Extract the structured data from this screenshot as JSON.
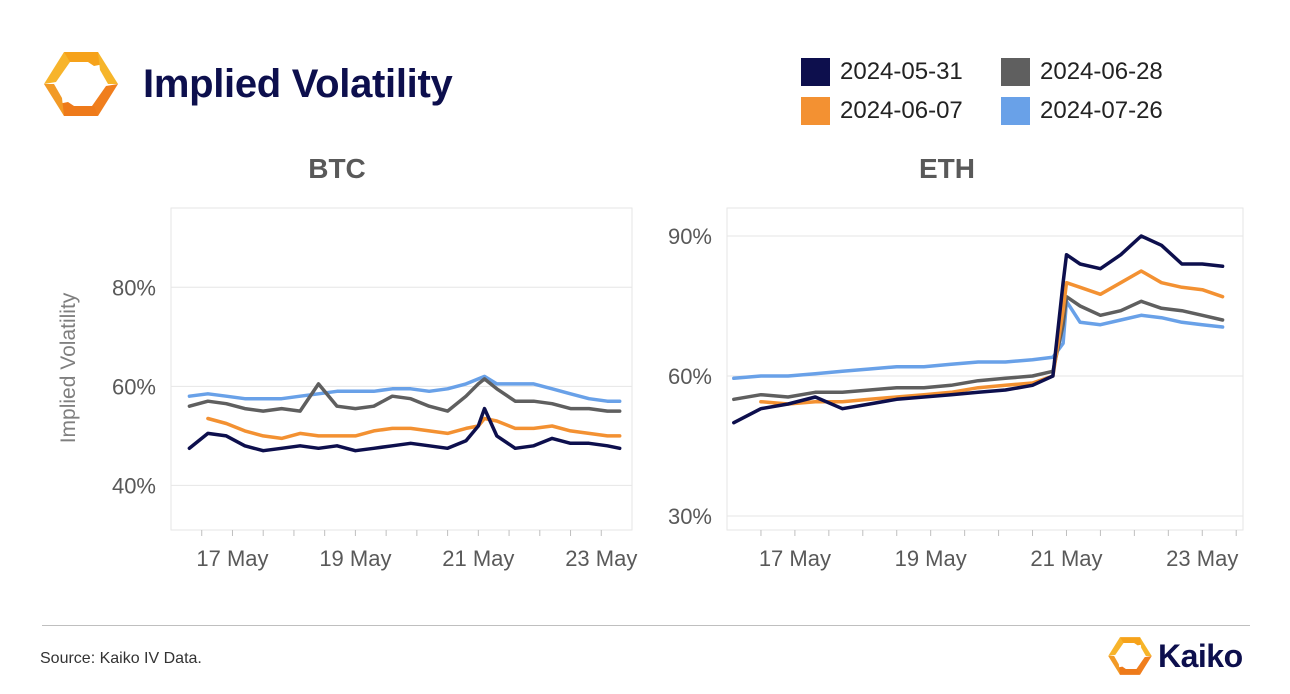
{
  "header": {
    "title": "Implied Volatility",
    "logo_icon": "kaiko-logo-icon"
  },
  "legend": [
    {
      "label": "2024-05-31",
      "color": "#0d0f4d"
    },
    {
      "label": "2024-06-28",
      "color": "#5f5f5f"
    },
    {
      "label": "2024-06-07",
      "color": "#f39132"
    },
    {
      "label": "2024-07-26",
      "color": "#69a1e8"
    }
  ],
  "footer": {
    "source": "Source: Kaiko IV Data.",
    "brand": "Kaiko",
    "brand_icon": "kaiko-logo-icon"
  },
  "chart_data": [
    {
      "type": "line",
      "title": "BTC",
      "ylabel": "Implied Volatility",
      "xlabel": "",
      "x_ticks": [
        "17 May",
        "19 May",
        "21 May",
        "23 May"
      ],
      "x_tick_values": [
        17,
        19,
        21,
        23
      ],
      "xlim": [
        16,
        23.5
      ],
      "y_ticks": [
        "40%",
        "60%",
        "80%"
      ],
      "y_tick_values": [
        40,
        60,
        80
      ],
      "ylim": [
        31,
        96
      ],
      "grid": true,
      "x": [
        16.3,
        16.6,
        16.9,
        17.2,
        17.5,
        17.8,
        18.1,
        18.4,
        18.7,
        19.0,
        19.3,
        19.6,
        19.9,
        20.2,
        20.5,
        20.8,
        21.0,
        21.1,
        21.3,
        21.6,
        21.9,
        22.2,
        22.5,
        22.8,
        23.1,
        23.3
      ],
      "series": [
        {
          "name": "2024-05-31",
          "color": "#0d0f4d",
          "values": [
            47.5,
            50.5,
            50,
            48,
            47,
            47.5,
            48,
            47.5,
            48,
            47,
            47.5,
            48,
            48.5,
            48,
            47.5,
            49,
            52,
            55.5,
            50,
            47.5,
            48,
            49.5,
            48.5,
            48.5,
            48,
            47.5
          ]
        },
        {
          "name": "2024-06-07",
          "color": "#f39132",
          "values": [
            null,
            53.5,
            52.5,
            51,
            50,
            49.5,
            50.5,
            50,
            50,
            50,
            51,
            51.5,
            51.5,
            51,
            50.5,
            51.5,
            52,
            53.5,
            53,
            51.5,
            51.5,
            52,
            51,
            50.5,
            50,
            50
          ]
        },
        {
          "name": "2024-06-28",
          "color": "#5f5f5f",
          "values": [
            56,
            57,
            56.5,
            55.5,
            55,
            55.5,
            55,
            60.5,
            56,
            55.5,
            56,
            58,
            57.5,
            56,
            55,
            58,
            60.5,
            61.5,
            59.5,
            57,
            57,
            56.5,
            55.5,
            55.5,
            55,
            55
          ]
        },
        {
          "name": "2024-07-26",
          "color": "#69a1e8",
          "values": [
            58,
            58.5,
            58,
            57.5,
            57.5,
            57.5,
            58,
            58.5,
            59,
            59,
            59,
            59.5,
            59.5,
            59,
            59.5,
            60.5,
            61.5,
            62,
            60.5,
            60.5,
            60.5,
            59.5,
            58.5,
            57.5,
            57,
            57
          ]
        }
      ]
    },
    {
      "type": "line",
      "title": "ETH",
      "ylabel": "",
      "xlabel": "",
      "x_ticks": [
        "17 May",
        "19 May",
        "21 May",
        "23 May"
      ],
      "x_tick_values": [
        17,
        19,
        21,
        23
      ],
      "xlim": [
        16,
        23.6
      ],
      "y_ticks": [
        "30%",
        "60%",
        "90%"
      ],
      "y_tick_values": [
        30,
        60,
        90
      ],
      "ylim": [
        27,
        96
      ],
      "grid": true,
      "x": [
        16.1,
        16.5,
        16.9,
        17.3,
        17.7,
        18.1,
        18.5,
        18.9,
        19.3,
        19.7,
        20.1,
        20.5,
        20.8,
        20.95,
        21.0,
        21.2,
        21.5,
        21.8,
        22.1,
        22.4,
        22.7,
        23.0,
        23.3
      ],
      "series": [
        {
          "name": "2024-05-31",
          "color": "#0d0f4d",
          "values": [
            50,
            53,
            54,
            55.5,
            53,
            54,
            55,
            55.5,
            56,
            56.5,
            57,
            58,
            60,
            80,
            86,
            84,
            83,
            86,
            90,
            88,
            84,
            84,
            83.5
          ]
        },
        {
          "name": "2024-06-07",
          "color": "#f39132",
          "values": [
            null,
            54.5,
            54,
            54.5,
            54.5,
            55,
            55.5,
            56,
            56.5,
            57.5,
            58,
            58.5,
            60,
            74,
            80,
            79,
            77.5,
            80,
            82.5,
            80,
            79,
            78.5,
            77
          ]
        },
        {
          "name": "2024-06-28",
          "color": "#5f5f5f",
          "values": [
            55,
            56,
            55.5,
            56.5,
            56.5,
            57,
            57.5,
            57.5,
            58,
            59,
            59.5,
            60,
            61,
            71,
            77,
            75,
            73,
            74,
            76,
            74.5,
            74,
            73,
            72
          ]
        },
        {
          "name": "2024-07-26",
          "color": "#69a1e8",
          "values": [
            59.5,
            60,
            60,
            60.5,
            61,
            61.5,
            62,
            62,
            62.5,
            63,
            63,
            63.5,
            64,
            67,
            76,
            71.5,
            71,
            72,
            73,
            72.5,
            71.5,
            71,
            70.5
          ]
        }
      ]
    }
  ]
}
